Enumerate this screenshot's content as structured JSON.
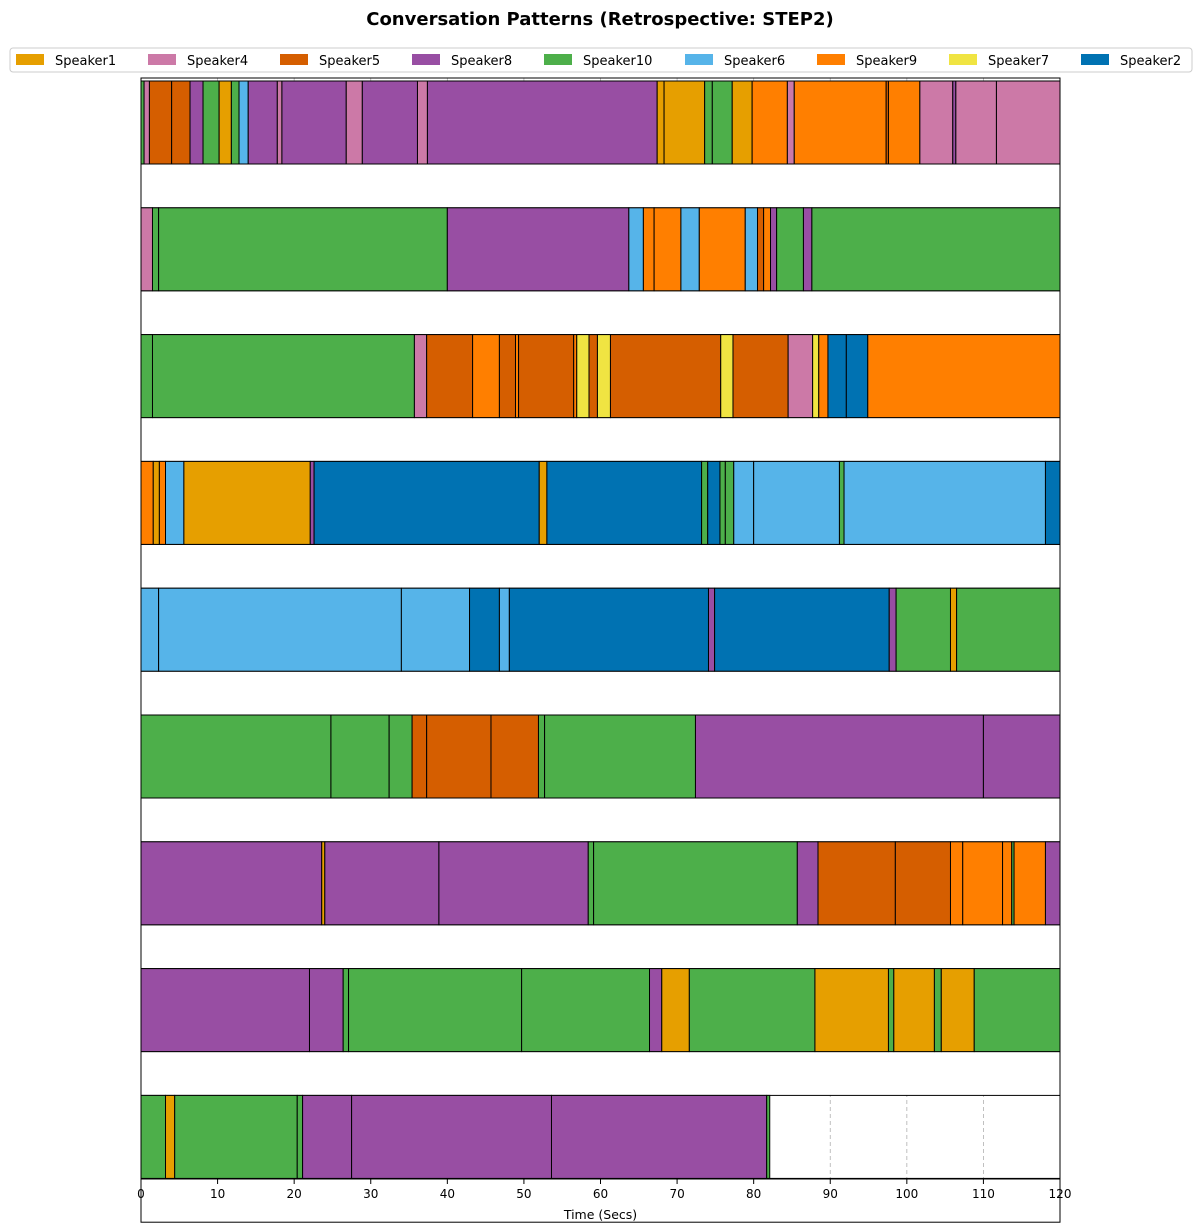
{
  "chart_data": {
    "type": "broken_barh",
    "title": "Conversation Patterns (Retrospective: STEP2)",
    "xlabel": "Time (Secs)",
    "xlim": [
      0,
      120
    ],
    "xticks": [
      0,
      10,
      20,
      30,
      40,
      50,
      60,
      70,
      80,
      90,
      100,
      110,
      120
    ],
    "grid": "vertical dashed",
    "legend_position": "top",
    "speakers": [
      {
        "name": "Speaker1",
        "color": "#E69F00"
      },
      {
        "name": "Speaker4",
        "color": "#CC79A7"
      },
      {
        "name": "Speaker5",
        "color": "#D55E00"
      },
      {
        "name": "Speaker8",
        "color": "#984EA3"
      },
      {
        "name": "Speaker10",
        "color": "#4DAF4A"
      },
      {
        "name": "Speaker6",
        "color": "#56B4E9"
      },
      {
        "name": "Speaker9",
        "color": "#FF7F00"
      },
      {
        "name": "Speaker7",
        "color": "#F0E442"
      },
      {
        "name": "Speaker2",
        "color": "#0072B2"
      }
    ],
    "rows": [
      [
        [
          0,
          0.4,
          "Speaker10"
        ],
        [
          0.4,
          1.1,
          "Speaker4"
        ],
        [
          1.1,
          4.0,
          "Speaker5"
        ],
        [
          4.0,
          6.4,
          "Speaker5"
        ],
        [
          6.4,
          8.1,
          "Speaker8"
        ],
        [
          8.1,
          10.2,
          "Speaker10"
        ],
        [
          10.2,
          11.8,
          "Speaker1"
        ],
        [
          11.8,
          12.8,
          "Speaker10"
        ],
        [
          12.8,
          14.0,
          "Speaker6"
        ],
        [
          14.0,
          17.8,
          "Speaker8"
        ],
        [
          17.8,
          18.4,
          "Speaker4"
        ],
        [
          18.4,
          26.8,
          "Speaker8"
        ],
        [
          26.8,
          28.9,
          "Speaker4"
        ],
        [
          28.9,
          36.1,
          "Speaker8"
        ],
        [
          36.1,
          37.4,
          "Speaker4"
        ],
        [
          37.4,
          67.4,
          "Speaker8"
        ],
        [
          67.4,
          68.3,
          "Speaker1"
        ],
        [
          68.3,
          73.6,
          "Speaker1"
        ],
        [
          73.6,
          74.6,
          "Speaker10"
        ],
        [
          74.6,
          77.2,
          "Speaker10"
        ],
        [
          77.2,
          79.8,
          "Speaker1"
        ],
        [
          79.8,
          84.4,
          "Speaker9"
        ],
        [
          84.4,
          85.3,
          "Speaker4"
        ],
        [
          85.3,
          97.3,
          "Speaker9"
        ],
        [
          97.3,
          97.6,
          "Speaker5"
        ],
        [
          97.6,
          101.7,
          "Speaker9"
        ],
        [
          101.7,
          106.0,
          "Speaker4"
        ],
        [
          106.0,
          106.4,
          "Speaker8"
        ],
        [
          106.4,
          111.7,
          "Speaker4"
        ],
        [
          111.7,
          120.0,
          "Speaker4"
        ]
      ],
      [
        [
          0,
          1.5,
          "Speaker4"
        ],
        [
          1.5,
          2.3,
          "Speaker10"
        ],
        [
          2.3,
          40.0,
          "Speaker10"
        ],
        [
          40.0,
          63.7,
          "Speaker8"
        ],
        [
          63.7,
          65.6,
          "Speaker6"
        ],
        [
          65.6,
          67.0,
          "Speaker9"
        ],
        [
          67.0,
          70.5,
          "Speaker9"
        ],
        [
          70.5,
          72.9,
          "Speaker6"
        ],
        [
          72.9,
          78.9,
          "Speaker9"
        ],
        [
          78.9,
          80.5,
          "Speaker6"
        ],
        [
          80.5,
          81.3,
          "Speaker5"
        ],
        [
          81.3,
          82.2,
          "Speaker9"
        ],
        [
          82.2,
          83.0,
          "Speaker8"
        ],
        [
          83.0,
          86.5,
          "Speaker10"
        ],
        [
          86.5,
          87.6,
          "Speaker8"
        ],
        [
          87.6,
          120.0,
          "Speaker10"
        ]
      ],
      [
        [
          0,
          1.5,
          "Speaker10"
        ],
        [
          1.5,
          35.7,
          "Speaker10"
        ],
        [
          35.7,
          37.3,
          "Speaker4"
        ],
        [
          37.3,
          43.3,
          "Speaker5"
        ],
        [
          43.3,
          46.8,
          "Speaker9"
        ],
        [
          46.8,
          48.9,
          "Speaker5"
        ],
        [
          48.9,
          49.3,
          "Speaker9"
        ],
        [
          49.3,
          56.5,
          "Speaker5"
        ],
        [
          56.5,
          56.9,
          "Speaker9"
        ],
        [
          56.9,
          58.5,
          "Speaker7"
        ],
        [
          58.5,
          59.6,
          "Speaker5"
        ],
        [
          59.6,
          61.3,
          "Speaker7"
        ],
        [
          61.3,
          75.7,
          "Speaker5"
        ],
        [
          75.7,
          77.3,
          "Speaker7"
        ],
        [
          77.3,
          84.5,
          "Speaker5"
        ],
        [
          84.5,
          87.7,
          "Speaker4"
        ],
        [
          87.7,
          88.5,
          "Speaker7"
        ],
        [
          88.5,
          89.7,
          "Speaker9"
        ],
        [
          89.7,
          92.1,
          "Speaker2"
        ],
        [
          92.1,
          94.9,
          "Speaker2"
        ],
        [
          94.9,
          120.0,
          "Speaker9"
        ]
      ],
      [
        [
          0,
          1.6,
          "Speaker9"
        ],
        [
          1.6,
          2.4,
          "Speaker1"
        ],
        [
          2.4,
          3.2,
          "Speaker9"
        ],
        [
          3.2,
          5.6,
          "Speaker6"
        ],
        [
          5.6,
          22.1,
          "Speaker1"
        ],
        [
          22.1,
          22.6,
          "Speaker8"
        ],
        [
          22.6,
          52.0,
          "Speaker2"
        ],
        [
          52.0,
          53.0,
          "Speaker1"
        ],
        [
          53.0,
          73.2,
          "Speaker2"
        ],
        [
          73.2,
          74.0,
          "Speaker10"
        ],
        [
          74.0,
          75.6,
          "Speaker2"
        ],
        [
          75.6,
          76.3,
          "Speaker10"
        ],
        [
          76.3,
          77.4,
          "Speaker10"
        ],
        [
          77.4,
          80.0,
          "Speaker6"
        ],
        [
          80.0,
          91.2,
          "Speaker6"
        ],
        [
          91.2,
          91.8,
          "Speaker10"
        ],
        [
          91.8,
          118.1,
          "Speaker6"
        ],
        [
          118.1,
          120.0,
          "Speaker2"
        ]
      ],
      [
        [
          0,
          2.3,
          "Speaker6"
        ],
        [
          2.3,
          34.0,
          "Speaker6"
        ],
        [
          34.0,
          42.9,
          "Speaker6"
        ],
        [
          42.9,
          46.8,
          "Speaker2"
        ],
        [
          46.8,
          48.1,
          "Speaker6"
        ],
        [
          48.1,
          74.1,
          "Speaker2"
        ],
        [
          74.1,
          74.9,
          "Speaker8"
        ],
        [
          74.9,
          97.7,
          "Speaker2"
        ],
        [
          97.7,
          98.6,
          "Speaker8"
        ],
        [
          98.6,
          105.7,
          "Speaker10"
        ],
        [
          105.7,
          106.5,
          "Speaker1"
        ],
        [
          106.5,
          120.0,
          "Speaker10"
        ]
      ],
      [
        [
          0,
          24.8,
          "Speaker10"
        ],
        [
          24.8,
          32.4,
          "Speaker10"
        ],
        [
          32.4,
          35.4,
          "Speaker10"
        ],
        [
          35.4,
          37.3,
          "Speaker5"
        ],
        [
          37.3,
          45.7,
          "Speaker5"
        ],
        [
          45.7,
          51.9,
          "Speaker5"
        ],
        [
          51.9,
          52.7,
          "Speaker10"
        ],
        [
          52.7,
          72.4,
          "Speaker10"
        ],
        [
          72.4,
          110.0,
          "Speaker8"
        ],
        [
          110.0,
          120.0,
          "Speaker8"
        ]
      ],
      [
        [
          0,
          23.6,
          "Speaker8"
        ],
        [
          23.6,
          24.0,
          "Speaker1"
        ],
        [
          24.0,
          38.9,
          "Speaker8"
        ],
        [
          38.9,
          58.4,
          "Speaker8"
        ],
        [
          58.4,
          59.1,
          "Speaker10"
        ],
        [
          59.1,
          85.7,
          "Speaker10"
        ],
        [
          85.7,
          88.4,
          "Speaker8"
        ],
        [
          88.4,
          98.5,
          "Speaker5"
        ],
        [
          98.5,
          105.7,
          "Speaker5"
        ],
        [
          105.7,
          107.3,
          "Speaker9"
        ],
        [
          107.3,
          112.5,
          "Speaker9"
        ],
        [
          112.5,
          113.7,
          "Speaker9"
        ],
        [
          113.7,
          114.0,
          "Speaker10"
        ],
        [
          114.0,
          118.1,
          "Speaker9"
        ],
        [
          118.1,
          120.0,
          "Speaker8"
        ]
      ],
      [
        [
          0,
          22.0,
          "Speaker8"
        ],
        [
          22.0,
          26.4,
          "Speaker8"
        ],
        [
          26.4,
          27.1,
          "Speaker10"
        ],
        [
          27.1,
          49.7,
          "Speaker10"
        ],
        [
          49.7,
          66.4,
          "Speaker10"
        ],
        [
          66.4,
          68.0,
          "Speaker8"
        ],
        [
          68.0,
          71.6,
          "Speaker1"
        ],
        [
          71.6,
          88.0,
          "Speaker10"
        ],
        [
          88.0,
          97.6,
          "Speaker1"
        ],
        [
          97.6,
          98.3,
          "Speaker10"
        ],
        [
          98.3,
          103.6,
          "Speaker1"
        ],
        [
          103.6,
          104.5,
          "Speaker10"
        ],
        [
          104.5,
          108.8,
          "Speaker1"
        ],
        [
          108.8,
          120.0,
          "Speaker10"
        ]
      ],
      [
        [
          0,
          3.2,
          "Speaker10"
        ],
        [
          3.2,
          4.4,
          "Speaker1"
        ],
        [
          4.4,
          20.4,
          "Speaker10"
        ],
        [
          20.4,
          21.1,
          "Speaker10"
        ],
        [
          21.1,
          27.5,
          "Speaker8"
        ],
        [
          27.5,
          53.6,
          "Speaker8"
        ],
        [
          53.6,
          81.7,
          "Speaker8"
        ],
        [
          81.7,
          82.1,
          "Speaker10"
        ]
      ]
    ]
  }
}
